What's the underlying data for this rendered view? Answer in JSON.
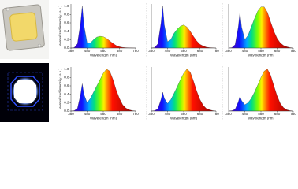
{
  "chart_data": [
    {
      "type": "line",
      "xlabel": "Wavelength (nm)",
      "ylabel": "Normalized intensity (a.u.)",
      "x": [
        380,
        400,
        420,
        440,
        450,
        460,
        480,
        500,
        520,
        540,
        560,
        580,
        600,
        620,
        640,
        660,
        680,
        700,
        720,
        740,
        760,
        780
      ],
      "values": [
        0,
        0.01,
        0.1,
        0.6,
        1,
        0.55,
        0.12,
        0.12,
        0.2,
        0.26,
        0.28,
        0.27,
        0.23,
        0.17,
        0.11,
        0.06,
        0.03,
        0.015,
        0.008,
        0.004,
        0.002,
        0
      ],
      "xlim": [
        380,
        780
      ],
      "xticks": [
        380,
        480,
        580,
        680,
        780
      ],
      "ylim": [
        0,
        1.05
      ],
      "yticks": [
        {
          "value": 0,
          "label": "0.0"
        },
        0.2,
        0.4,
        0.6,
        0.8,
        {
          "value": 1,
          "label": "1.0"
        }
      ]
    },
    {
      "type": "line",
      "xlabel": "Wavelength (nm)",
      "x": [
        380,
        400,
        420,
        440,
        450,
        460,
        480,
        500,
        520,
        540,
        560,
        580,
        600,
        620,
        640,
        660,
        680,
        700,
        720,
        740,
        760,
        780
      ],
      "values": [
        0,
        0.01,
        0.1,
        0.6,
        1,
        0.55,
        0.15,
        0.2,
        0.35,
        0.45,
        0.52,
        0.55,
        0.5,
        0.4,
        0.28,
        0.17,
        0.09,
        0.05,
        0.02,
        0.01,
        0.005,
        0
      ],
      "xlim": [
        380,
        780
      ],
      "xticks": [
        380,
        480,
        580,
        680,
        780
      ],
      "ylim": [
        0,
        1.05
      ]
    },
    {
      "type": "line",
      "xlabel": "Wavelength (nm)",
      "x": [
        380,
        400,
        420,
        440,
        450,
        460,
        480,
        500,
        520,
        540,
        560,
        580,
        600,
        620,
        640,
        660,
        680,
        700,
        720,
        740,
        760,
        780
      ],
      "values": [
        0,
        0.01,
        0.08,
        0.5,
        0.85,
        0.5,
        0.2,
        0.3,
        0.5,
        0.7,
        0.88,
        0.98,
        0.98,
        0.85,
        0.62,
        0.4,
        0.23,
        0.12,
        0.06,
        0.03,
        0.01,
        0
      ],
      "xlim": [
        380,
        780
      ],
      "xticks": [
        380,
        480,
        580,
        680,
        780
      ],
      "ylim": [
        0,
        1.05
      ]
    },
    {
      "type": "line",
      "xlabel": "Wavelength (nm)",
      "ylabel": "Normalized intensity (a.u.)",
      "x": [
        380,
        400,
        420,
        440,
        450,
        460,
        480,
        500,
        520,
        540,
        560,
        580,
        600,
        620,
        640,
        660,
        680,
        700,
        720,
        740,
        760,
        780
      ],
      "values": [
        0,
        0.01,
        0.06,
        0.4,
        0.65,
        0.4,
        0.2,
        0.3,
        0.45,
        0.6,
        0.75,
        0.9,
        1,
        0.95,
        0.75,
        0.5,
        0.3,
        0.15,
        0.07,
        0.03,
        0.01,
        0
      ],
      "xlim": [
        380,
        780
      ],
      "xticks": [
        380,
        480,
        580,
        680,
        780
      ],
      "ylim": [
        0,
        1.05
      ],
      "yticks": [
        {
          "value": 0,
          "label": "0.0"
        },
        0.2,
        0.4,
        0.6,
        0.8,
        {
          "value": 1,
          "label": "1.0"
        }
      ]
    },
    {
      "type": "line",
      "xlabel": "Wavelength (nm)",
      "x": [
        380,
        400,
        420,
        440,
        450,
        460,
        480,
        500,
        520,
        540,
        560,
        580,
        600,
        620,
        640,
        660,
        680,
        700,
        720,
        740,
        760,
        780
      ],
      "values": [
        0,
        0.01,
        0.05,
        0.28,
        0.45,
        0.3,
        0.18,
        0.27,
        0.42,
        0.58,
        0.75,
        0.9,
        1,
        0.93,
        0.72,
        0.48,
        0.28,
        0.14,
        0.06,
        0.03,
        0.01,
        0
      ],
      "xlim": [
        380,
        780
      ],
      "xticks": [
        380,
        480,
        580,
        680,
        780
      ],
      "ylim": [
        0,
        1.05
      ]
    },
    {
      "type": "line",
      "xlabel": "Wavelength (nm)",
      "x": [
        380,
        400,
        420,
        440,
        450,
        460,
        480,
        500,
        520,
        540,
        560,
        580,
        600,
        620,
        640,
        660,
        680,
        700,
        720,
        740,
        760,
        780
      ],
      "values": [
        0,
        0.01,
        0.04,
        0.22,
        0.35,
        0.25,
        0.15,
        0.2,
        0.3,
        0.45,
        0.62,
        0.8,
        0.95,
        1,
        0.85,
        0.6,
        0.36,
        0.18,
        0.08,
        0.03,
        0.01,
        0
      ],
      "xlim": [
        380,
        780
      ],
      "xticks": [
        380,
        480,
        580,
        680,
        780
      ],
      "ylim": [
        0,
        1.05
      ]
    }
  ]
}
